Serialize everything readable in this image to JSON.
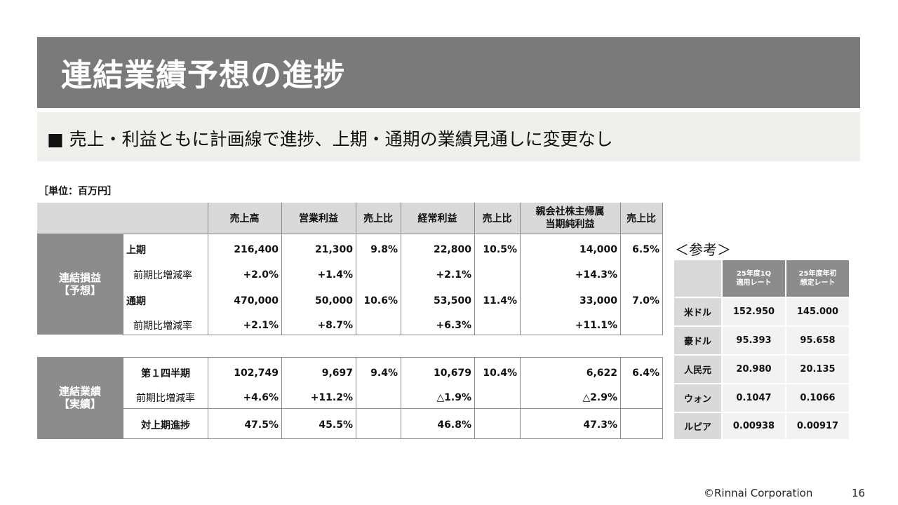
{
  "title": "連結業績予想の進捗",
  "subtitle": "■ 売上・利益ともに計画線で進捗、上期・通期の業績見通しに変更なし",
  "unit_label": "［単位：百万円］",
  "table": {
    "headers": [
      "売上高",
      "営業利益",
      "売上比",
      "経常利益",
      "売上比",
      "親会社株主帰属",
      "当期純利益",
      "売上比"
    ],
    "forecast_label_1": "連結損益",
    "forecast_label_2": "【予想】",
    "forecast_rows": [
      {
        "label": "上期",
        "v": [
          "216,400",
          "21,300",
          "9.8%",
          "22,800",
          "10.5%",
          "14,000",
          "6.5%"
        ]
      },
      {
        "label": "前期比増減率",
        "v": [
          "+2.0%",
          "+1.4%",
          "",
          "+2.1%",
          "",
          "+14.3%",
          ""
        ]
      },
      {
        "label": "通期",
        "v": [
          "470,000",
          "50,000",
          "10.6%",
          "53,500",
          "11.4%",
          "33,000",
          "7.0%"
        ]
      },
      {
        "label": "前期比増減率",
        "v": [
          "+2.1%",
          "+8.7%",
          "",
          "+6.3%",
          "",
          "+11.1%",
          ""
        ]
      }
    ],
    "actual_label_1": "連結業績",
    "actual_label_2": "【実績】",
    "actual_rows": [
      {
        "label": "第１四半期",
        "v": [
          "102,749",
          "9,697",
          "9.4%",
          "10,679",
          "10.4%",
          "6,622",
          "6.4%"
        ]
      },
      {
        "label": "前期比増減率",
        "v": [
          "+4.6%",
          "+11.2%",
          "",
          "△1.9%",
          "",
          "△2.9%",
          ""
        ]
      },
      {
        "label": "対上期進捗",
        "v": [
          "47.5%",
          "45.5%",
          "",
          "46.8%",
          "",
          "47.3%",
          ""
        ]
      }
    ]
  },
  "reference": {
    "title": "＜参考＞",
    "col1_line1": "25年度1Q",
    "col1_line2": "適用レート",
    "col2_line1": "25年度年初",
    "col2_line2": "想定レート",
    "rows": [
      {
        "label": "米ドル",
        "a": "152.950",
        "b": "145.000"
      },
      {
        "label": "豪ドル",
        "a": "95.393",
        "b": "95.658"
      },
      {
        "label": "人民元",
        "a": "20.980",
        "b": "20.135"
      },
      {
        "label": "ウォン",
        "a": "0.1047",
        "b": "0.1066"
      },
      {
        "label": "ルピア",
        "a": "0.00938",
        "b": "0.00917"
      }
    ]
  },
  "footer": {
    "copyright": "©Rinnai Corporation",
    "page_number": "16"
  }
}
